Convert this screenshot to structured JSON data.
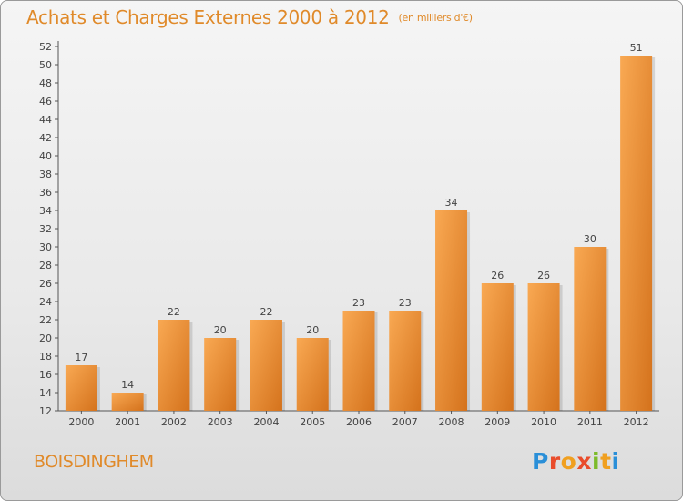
{
  "header": {
    "title": "Achats et Charges Externes 2000 à 2012",
    "unit": "(en milliers d'€)"
  },
  "footer": {
    "city": "BOISDINGHEM",
    "brand": "Proxiti"
  },
  "colors": {
    "accent": "#e08a2a",
    "bar_light": "#f7a04a",
    "bar_dark": "#d4721c"
  },
  "chart_data": {
    "type": "bar",
    "title": "Achats et Charges Externes 2000 à 2012",
    "subtitle": "(en milliers d'€)",
    "xlabel": "",
    "ylabel": "",
    "categories": [
      "2000",
      "2001",
      "2002",
      "2003",
      "2004",
      "2005",
      "2006",
      "2007",
      "2008",
      "2009",
      "2010",
      "2011",
      "2012"
    ],
    "values": [
      17,
      14,
      22,
      20,
      22,
      20,
      23,
      23,
      34,
      26,
      26,
      30,
      51
    ],
    "ylim": [
      12,
      52
    ],
    "ytick_step": 2,
    "grid": false,
    "data_labels": true
  }
}
